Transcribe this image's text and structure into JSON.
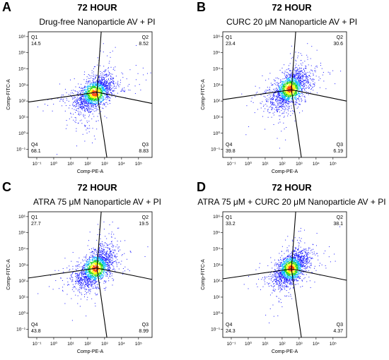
{
  "colors": {
    "low": "#1a1aff",
    "mid1": "#00b4ff",
    "mid2": "#19d219",
    "mid3": "#ffff00",
    "high": "#ff3c00",
    "gate": "#000000"
  },
  "chart_data": [
    {
      "type": "scatter",
      "panel_label": "A",
      "time": "72 HOUR",
      "title": "Drug-free Nanoparticle  AV + PI",
      "xlabel": "Comp-PE-A",
      "ylabel": "Comp-FITC-A",
      "x_ticks": [
        "10⁻¹",
        "10⁰",
        "10¹",
        "10²",
        "10³",
        "10⁴",
        "10⁵"
      ],
      "y_ticks": [
        "10⁻¹",
        "10⁰",
        "10¹",
        "10²",
        "10³",
        "10⁴",
        "10⁵",
        "10⁶"
      ],
      "xlim_log10": [
        -1.5,
        5.8
      ],
      "ylim_log10": [
        -1.5,
        6.3
      ],
      "quadrants": [
        {
          "name": "Q1",
          "value": "14.5"
        },
        {
          "name": "Q2",
          "value": "8.52"
        },
        {
          "name": "Q3",
          "value": "8.83"
        },
        {
          "name": "Q4",
          "value": "68.1"
        }
      ],
      "gate_center_log10": [
        2.55,
        2.55
      ],
      "population_center_log10": [
        2.4,
        2.5
      ],
      "population_spread_log10": [
        0.55,
        0.55
      ]
    },
    {
      "type": "scatter",
      "panel_label": "B",
      "time": "72 HOUR",
      "title": "CURC 20 μM Nanoparticle AV + PI",
      "xlabel": "Comp-PE-A",
      "ylabel": "Comp-FITC-A",
      "x_ticks": [
        "10⁻¹",
        "10⁰",
        "10¹",
        "10²",
        "10³",
        "10⁴",
        "10⁵"
      ],
      "y_ticks": [
        "10⁻¹",
        "10⁰",
        "10¹",
        "10²",
        "10³",
        "10⁴",
        "10⁵",
        "10⁶"
      ],
      "xlim_log10": [
        -1.5,
        5.8
      ],
      "ylim_log10": [
        -1.5,
        6.3
      ],
      "quadrants": [
        {
          "name": "Q1",
          "value": "23.4"
        },
        {
          "name": "Q2",
          "value": "30.6"
        },
        {
          "name": "Q3",
          "value": "6.19"
        },
        {
          "name": "Q4",
          "value": "39.8"
        }
      ],
      "gate_center_log10": [
        2.55,
        2.7
      ],
      "population_center_log10": [
        2.45,
        2.75
      ],
      "population_spread_log10": [
        0.55,
        0.6
      ]
    },
    {
      "type": "scatter",
      "panel_label": "C",
      "time": "72 HOUR",
      "title": "ATRA 75 μM Nanoparticle AV + PI",
      "xlabel": "Comp-PE-A",
      "ylabel": "Comp-FITC-A",
      "x_ticks": [
        "10⁻¹",
        "10⁰",
        "10¹",
        "10²",
        "10³",
        "10⁴",
        "10⁵"
      ],
      "y_ticks": [
        "10⁻¹",
        "10⁰",
        "10¹",
        "10²",
        "10³",
        "10⁴",
        "10⁵",
        "10⁶"
      ],
      "xlim_log10": [
        -1.5,
        5.8
      ],
      "ylim_log10": [
        -1.5,
        6.3
      ],
      "quadrants": [
        {
          "name": "Q1",
          "value": "27.7"
        },
        {
          "name": "Q2",
          "value": "19.5"
        },
        {
          "name": "Q3",
          "value": "8.99"
        },
        {
          "name": "Q4",
          "value": "43.8"
        }
      ],
      "gate_center_log10": [
        2.55,
        2.8
      ],
      "population_center_log10": [
        2.45,
        2.8
      ],
      "population_spread_log10": [
        0.55,
        0.6
      ]
    },
    {
      "type": "scatter",
      "panel_label": "D",
      "time": "72 HOUR",
      "title": "ATRA 75 μM + CURC 20 μM Nanoparticle AV + PI",
      "xlabel": "Comp-PE-A",
      "ylabel": "Comp-FITC-A",
      "x_ticks": [
        "10⁻¹",
        "10⁰",
        "10¹",
        "10²",
        "10³",
        "10⁴",
        "10⁵"
      ],
      "y_ticks": [
        "10⁻¹",
        "10⁰",
        "10¹",
        "10²",
        "10³",
        "10⁴",
        "10⁵",
        "10⁶"
      ],
      "xlim_log10": [
        -1.5,
        5.8
      ],
      "ylim_log10": [
        -1.5,
        6.3
      ],
      "quadrants": [
        {
          "name": "Q1",
          "value": "33.2"
        },
        {
          "name": "Q2",
          "value": "38.1"
        },
        {
          "name": "Q3",
          "value": "4.37"
        },
        {
          "name": "Q4",
          "value": "24.3"
        }
      ],
      "gate_center_log10": [
        2.55,
        2.75
      ],
      "population_center_log10": [
        2.5,
        2.8
      ],
      "population_spread_log10": [
        0.5,
        0.55
      ]
    }
  ]
}
